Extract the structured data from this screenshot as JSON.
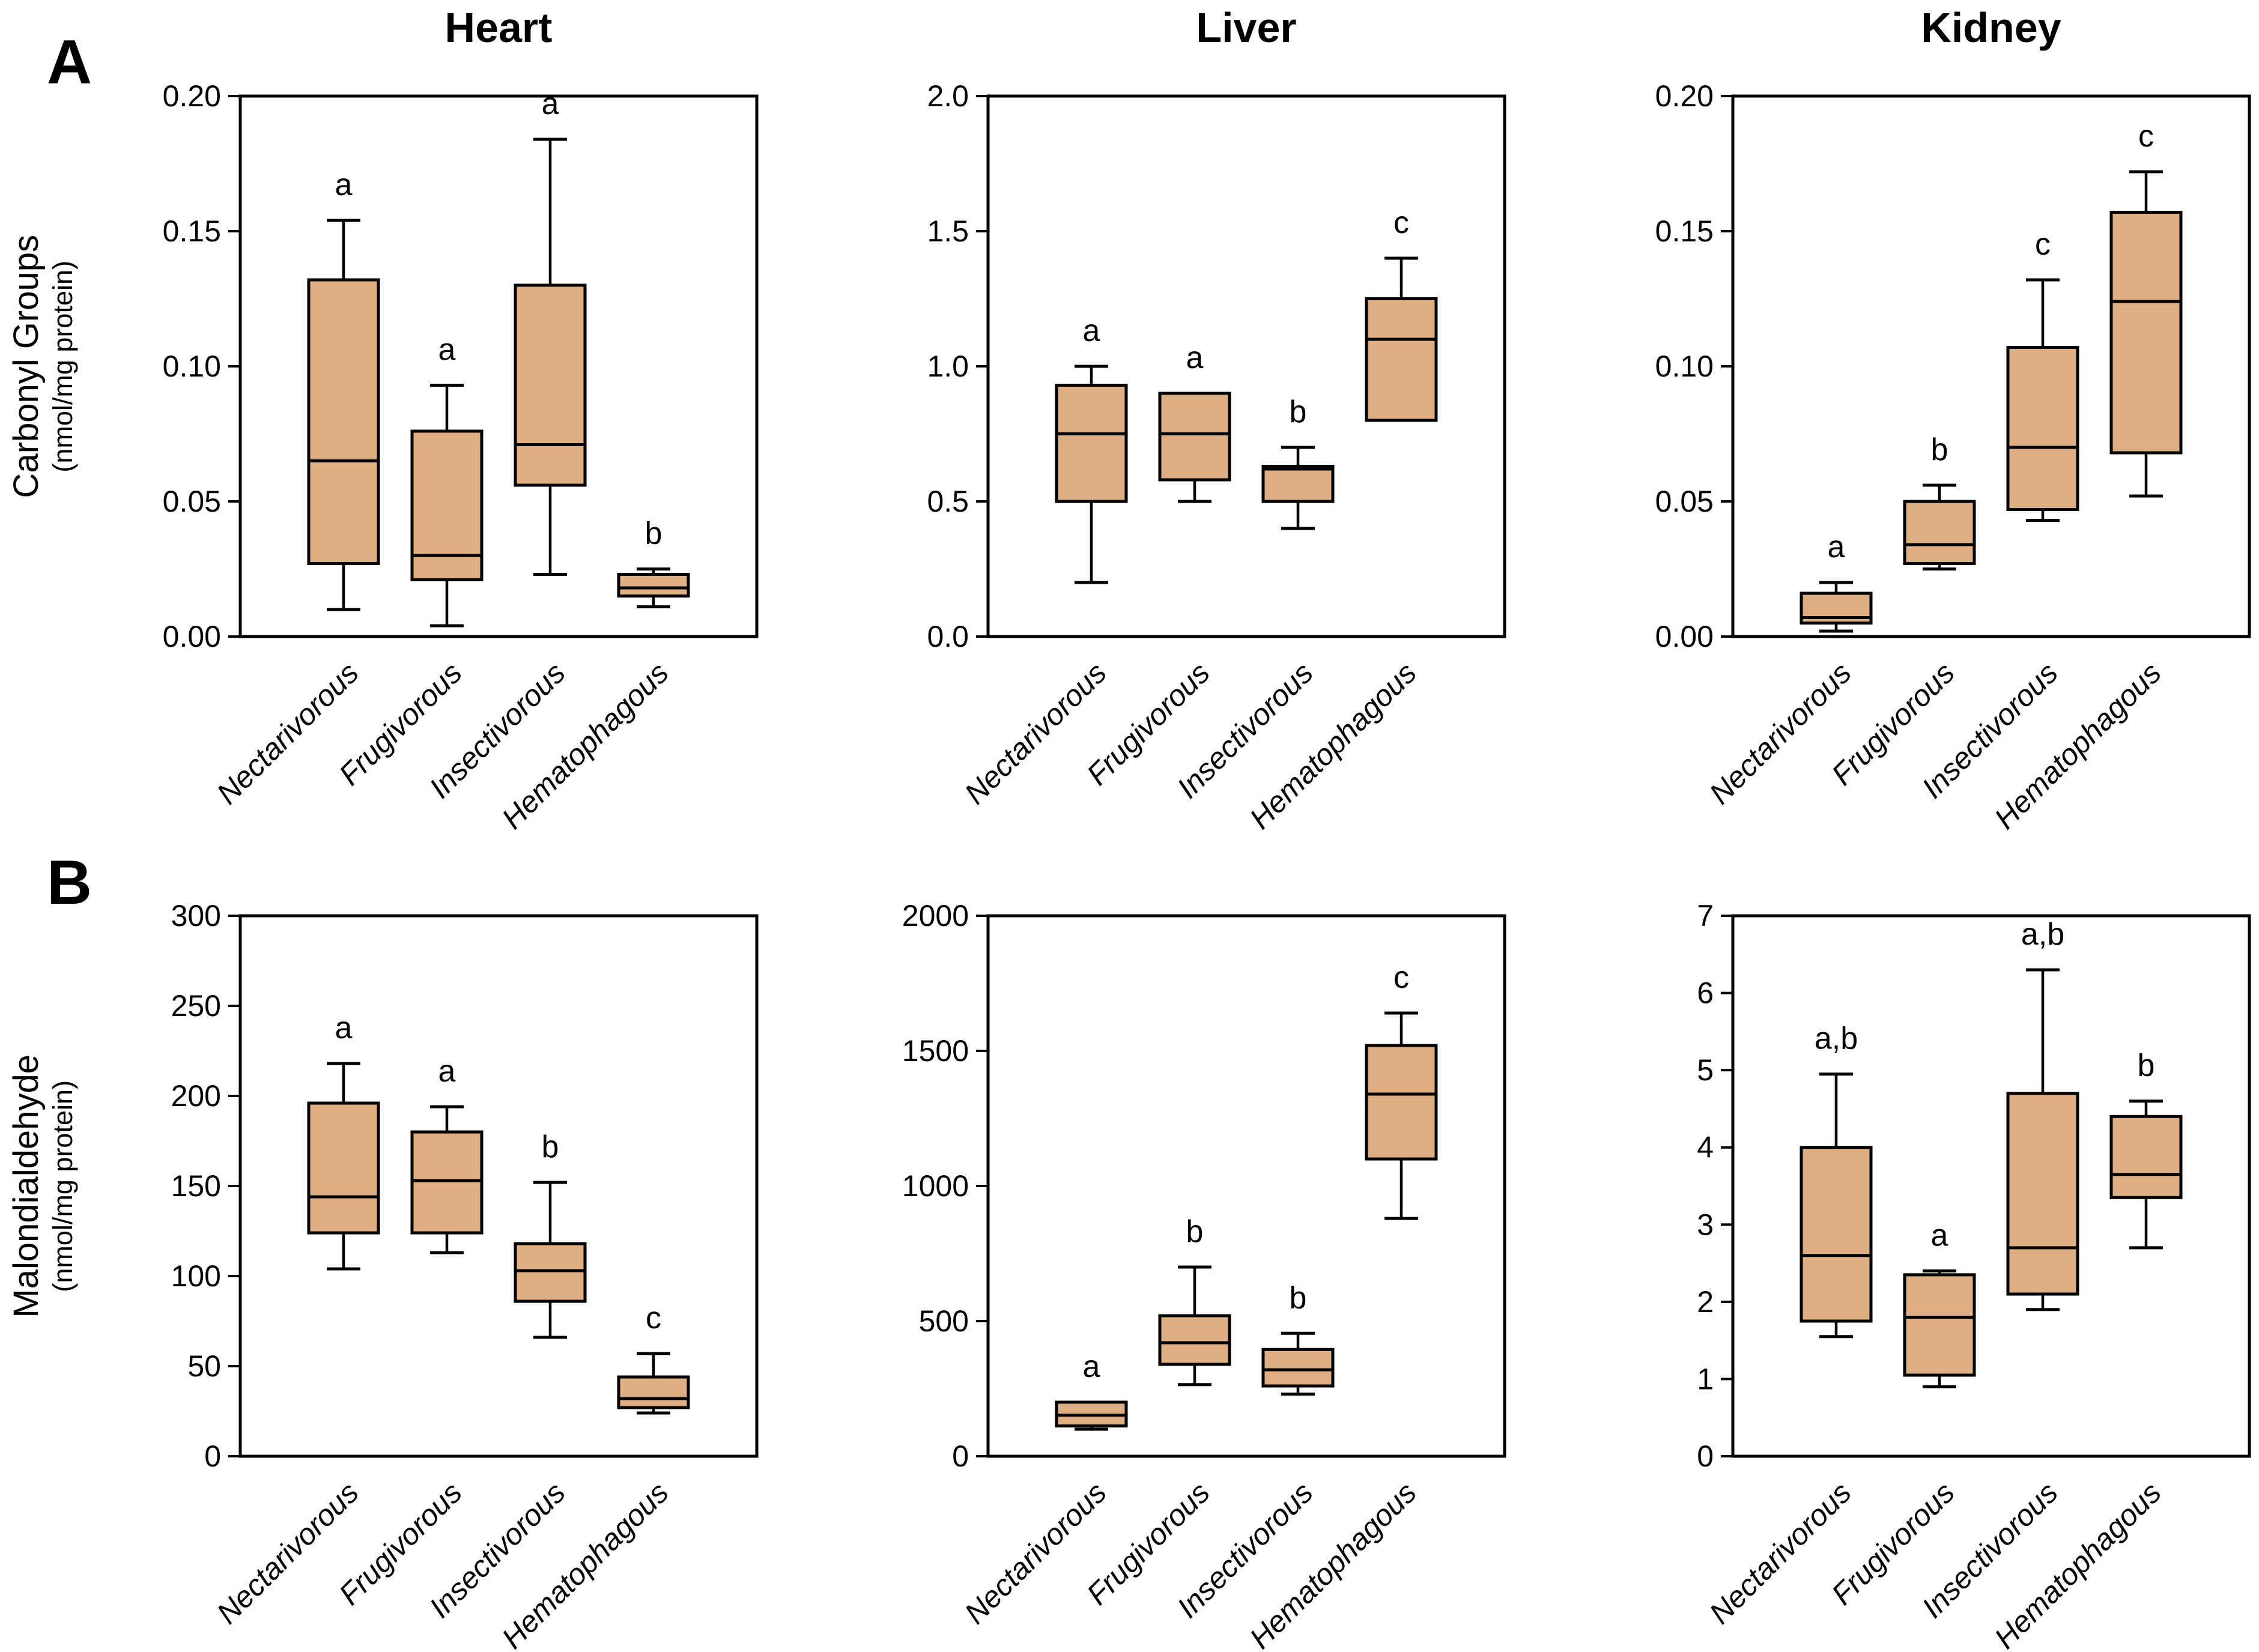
{
  "page": {
    "panel_a_label": "A",
    "panel_b_label": "B"
  },
  "colors": {
    "box_fill": "#ddaf82",
    "line": "#000000",
    "background": "#ffffff"
  },
  "chart_data": [
    {
      "type": "box",
      "panel": "A",
      "organ": "Heart",
      "ylabel": "Carbonyl Groups",
      "ylabel_sub": "(nmol/mg protein)",
      "ymin": 0,
      "ymax": 0.2,
      "yticks": [
        0,
        0.05,
        0.1,
        0.15,
        0.2
      ],
      "ytick_labels": [
        "0.00",
        "0.05",
        "0.10",
        "0.15",
        "0.20"
      ],
      "grid": false,
      "boxes": [
        {
          "category": "Nectarivorous",
          "whisker_low": 0.01,
          "q1": 0.027,
          "median": 0.065,
          "q3": 0.132,
          "whisker_high": 0.154,
          "sig": "a"
        },
        {
          "category": "Frugivorous",
          "whisker_low": 0.004,
          "q1": 0.021,
          "median": 0.03,
          "q3": 0.076,
          "whisker_high": 0.093,
          "sig": "a"
        },
        {
          "category": "Insectivorous",
          "whisker_low": 0.023,
          "q1": 0.056,
          "median": 0.071,
          "q3": 0.13,
          "whisker_high": 0.184,
          "sig": "a"
        },
        {
          "category": "Hematophagous",
          "whisker_low": 0.011,
          "q1": 0.015,
          "median": 0.018,
          "q3": 0.023,
          "whisker_high": 0.025,
          "sig": "b"
        }
      ]
    },
    {
      "type": "box",
      "panel": "A",
      "organ": "Liver",
      "ylabel": "Carbonyl Groups",
      "ylabel_sub": "(nmol/mg protein)",
      "ymin": 0,
      "ymax": 2.0,
      "yticks": [
        0,
        0.5,
        1.0,
        1.5,
        2.0
      ],
      "ytick_labels": [
        "0.0",
        "0.5",
        "1.0",
        "1.5",
        "2.0"
      ],
      "grid": false,
      "boxes": [
        {
          "category": "Nectarivorous",
          "whisker_low": 0.2,
          "q1": 0.5,
          "median": 0.75,
          "q3": 0.93,
          "whisker_high": 1.0,
          "sig": "a"
        },
        {
          "category": "Frugivorous",
          "whisker_low": 0.5,
          "q1": 0.58,
          "median": 0.75,
          "q3": 0.9,
          "whisker_high": 0.9,
          "sig": "a"
        },
        {
          "category": "Insectivorous",
          "whisker_low": 0.4,
          "q1": 0.5,
          "median": 0.62,
          "q3": 0.63,
          "whisker_high": 0.7,
          "sig": "b"
        },
        {
          "category": "Hematophagous",
          "whisker_low": 0.8,
          "q1": 0.8,
          "median": 1.1,
          "q3": 1.25,
          "whisker_high": 1.4,
          "sig": "c"
        }
      ]
    },
    {
      "type": "box",
      "panel": "A",
      "organ": "Kidney",
      "ylabel": "Carbonyl Groups",
      "ylabel_sub": "(nmol/mg protein)",
      "ymin": 0,
      "ymax": 0.2,
      "yticks": [
        0,
        0.05,
        0.1,
        0.15,
        0.2
      ],
      "ytick_labels": [
        "0.00",
        "0.05",
        "0.10",
        "0.15",
        "0.20"
      ],
      "grid": false,
      "boxes": [
        {
          "category": "Nectarivorous",
          "whisker_low": 0.002,
          "q1": 0.005,
          "median": 0.007,
          "q3": 0.016,
          "whisker_high": 0.02,
          "sig": "a"
        },
        {
          "category": "Frugivorous",
          "whisker_low": 0.025,
          "q1": 0.027,
          "median": 0.034,
          "q3": 0.05,
          "whisker_high": 0.056,
          "sig": "b"
        },
        {
          "category": "Insectivorous",
          "whisker_low": 0.043,
          "q1": 0.047,
          "median": 0.07,
          "q3": 0.107,
          "whisker_high": 0.132,
          "sig": "c"
        },
        {
          "category": "Hematophagous",
          "whisker_low": 0.052,
          "q1": 0.068,
          "median": 0.124,
          "q3": 0.157,
          "whisker_high": 0.172,
          "sig": "c"
        }
      ]
    },
    {
      "type": "box",
      "panel": "B",
      "organ": "Heart",
      "ylabel": "Malondialdehyde",
      "ylabel_sub": "(nmol/mg protein)",
      "ymin": 0,
      "ymax": 300,
      "yticks": [
        0,
        50,
        100,
        150,
        200,
        250,
        300
      ],
      "ytick_labels": [
        "0",
        "50",
        "100",
        "150",
        "200",
        "250",
        "300"
      ],
      "grid": false,
      "boxes": [
        {
          "category": "Nectarivorous",
          "whisker_low": 104,
          "q1": 124,
          "median": 144,
          "q3": 196,
          "whisker_high": 218,
          "sig": "a"
        },
        {
          "category": "Frugivorous",
          "whisker_low": 113,
          "q1": 124,
          "median": 153,
          "q3": 180,
          "whisker_high": 194,
          "sig": "a"
        },
        {
          "category": "Insectivorous",
          "whisker_low": 66,
          "q1": 86,
          "median": 103,
          "q3": 118,
          "whisker_high": 152,
          "sig": "b"
        },
        {
          "category": "Hematophagous",
          "whisker_low": 24,
          "q1": 27,
          "median": 32,
          "q3": 44,
          "whisker_high": 57,
          "sig": "c"
        }
      ]
    },
    {
      "type": "box",
      "panel": "B",
      "organ": "Liver",
      "ylabel": "Malondialdehyde",
      "ylabel_sub": "(nmol/mg protein)",
      "ymin": 0,
      "ymax": 2000,
      "yticks": [
        0,
        500,
        1000,
        1500,
        2000
      ],
      "ytick_labels": [
        "0",
        "500",
        "1000",
        "1500",
        "2000"
      ],
      "grid": false,
      "boxes": [
        {
          "category": "Nectarivorous",
          "whisker_low": 100,
          "q1": 112,
          "median": 152,
          "q3": 200,
          "whisker_high": 200,
          "sig": "a"
        },
        {
          "category": "Frugivorous",
          "whisker_low": 265,
          "q1": 340,
          "median": 420,
          "q3": 520,
          "whisker_high": 700,
          "sig": "b"
        },
        {
          "category": "Insectivorous",
          "whisker_low": 230,
          "q1": 260,
          "median": 320,
          "q3": 395,
          "whisker_high": 455,
          "sig": "b"
        },
        {
          "category": "Hematophagous",
          "whisker_low": 880,
          "q1": 1100,
          "median": 1340,
          "q3": 1520,
          "whisker_high": 1640,
          "sig": "c"
        }
      ]
    },
    {
      "type": "box",
      "panel": "B",
      "organ": "Kidney",
      "ylabel": "Malondialdehyde",
      "ylabel_sub": "(nmol/mg protein)",
      "ymin": 0,
      "ymax": 7,
      "yticks": [
        0,
        1,
        2,
        3,
        4,
        5,
        6,
        7
      ],
      "ytick_labels": [
        "0",
        "1",
        "2",
        "3",
        "4",
        "5",
        "6",
        "7"
      ],
      "grid": false,
      "boxes": [
        {
          "category": "Nectarivorous",
          "whisker_low": 1.55,
          "q1": 1.75,
          "median": 2.6,
          "q3": 4.0,
          "whisker_high": 4.95,
          "sig": "a,b"
        },
        {
          "category": "Frugivorous",
          "whisker_low": 0.9,
          "q1": 1.05,
          "median": 1.8,
          "q3": 2.35,
          "whisker_high": 2.4,
          "sig": "a"
        },
        {
          "category": "Insectivorous",
          "whisker_low": 1.9,
          "q1": 2.1,
          "median": 2.7,
          "q3": 4.7,
          "whisker_high": 6.3,
          "sig": "a,b"
        },
        {
          "category": "Hematophagous",
          "whisker_low": 2.7,
          "q1": 3.35,
          "median": 3.65,
          "q3": 4.4,
          "whisker_high": 4.6,
          "sig": "b"
        }
      ]
    }
  ]
}
